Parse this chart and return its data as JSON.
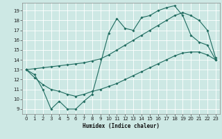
{
  "xlabel": "Humidex (Indice chaleur)",
  "bg_color": "#cde8e4",
  "grid_color": "#ffffff",
  "line_color": "#1f6b5f",
  "xlim": [
    -0.5,
    23.5
  ],
  "ylim": [
    8.5,
    19.8
  ],
  "xticks": [
    0,
    1,
    2,
    3,
    4,
    5,
    6,
    7,
    8,
    9,
    10,
    11,
    12,
    13,
    14,
    15,
    16,
    17,
    18,
    19,
    20,
    21,
    22,
    23
  ],
  "yticks": [
    9,
    10,
    11,
    12,
    13,
    14,
    15,
    16,
    17,
    18,
    19
  ],
  "line_jagged_x": [
    0,
    1,
    2,
    3,
    4,
    5,
    6,
    7,
    8,
    10,
    11,
    12,
    13,
    14,
    15,
    16,
    17,
    18,
    19,
    20,
    21,
    22,
    23
  ],
  "line_jagged_y": [
    13.0,
    12.5,
    11.0,
    9.0,
    9.8,
    9.0,
    9.0,
    9.8,
    10.5,
    16.7,
    18.2,
    17.2,
    17.0,
    18.3,
    18.5,
    19.0,
    19.3,
    19.5,
    18.5,
    16.5,
    15.8,
    15.5,
    14.0
  ],
  "line_upper_x": [
    0,
    1,
    2,
    3,
    4,
    5,
    6,
    7,
    8,
    9,
    10,
    11,
    12,
    13,
    14,
    15,
    16,
    17,
    18,
    19,
    20,
    21,
    22,
    23
  ],
  "line_upper_y": [
    13.0,
    13.1,
    13.2,
    13.3,
    13.4,
    13.5,
    13.6,
    13.7,
    13.9,
    14.1,
    14.5,
    15.0,
    15.5,
    16.0,
    16.5,
    17.0,
    17.5,
    18.0,
    18.5,
    18.8,
    18.5,
    18.0,
    17.0,
    14.2
  ],
  "line_lower_x": [
    0,
    1,
    2,
    3,
    4,
    5,
    6,
    7,
    8,
    9,
    10,
    11,
    12,
    13,
    14,
    15,
    16,
    17,
    18,
    19,
    20,
    21,
    22,
    23
  ],
  "line_lower_y": [
    13.0,
    12.2,
    11.5,
    11.0,
    10.8,
    10.5,
    10.3,
    10.5,
    10.8,
    11.0,
    11.3,
    11.6,
    12.0,
    12.4,
    12.8,
    13.2,
    13.6,
    14.0,
    14.4,
    14.7,
    14.8,
    14.8,
    14.5,
    14.0
  ]
}
